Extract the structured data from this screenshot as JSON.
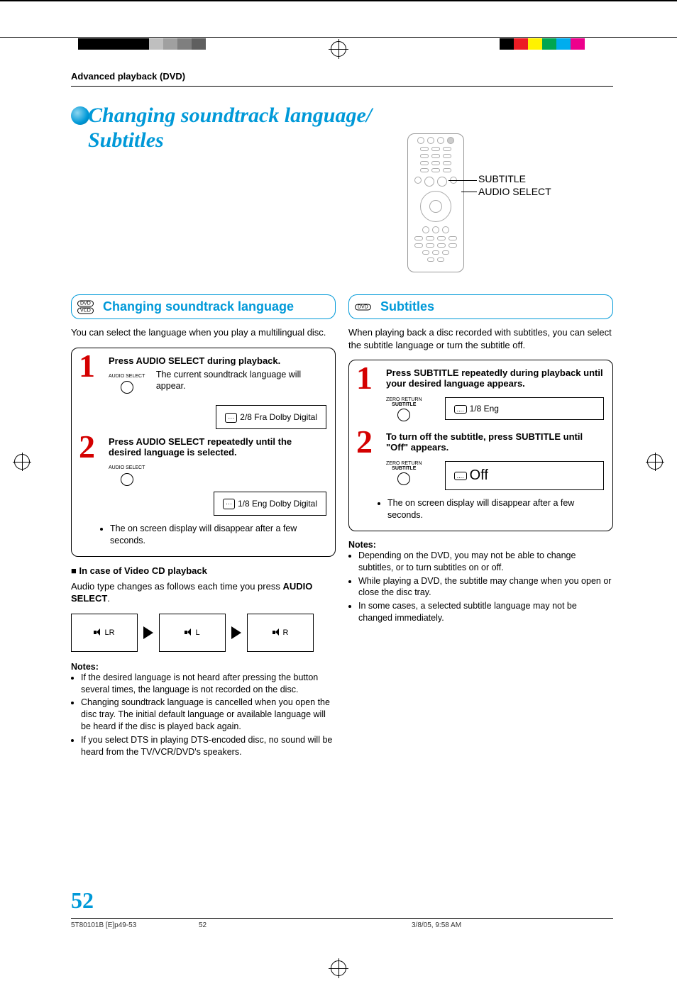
{
  "color_bars_left": [
    "#000000",
    "#000000",
    "#000000",
    "#000000",
    "#000000",
    "#bfbfbf",
    "#a0a0a0",
    "#7f7f7f",
    "#5f5f5f",
    "#ffffff"
  ],
  "color_bars_right": [
    "#000000",
    "#ec1c24",
    "#fff200",
    "#00a651",
    "#00adee",
    "#ed008c",
    "#ffffff"
  ],
  "breadcrumb": "Advanced playback (DVD)",
  "title_line1": "Changing soundtrack language/",
  "title_line2": "Subtitles",
  "remote_labels": {
    "subtitle": "SUBTITLE",
    "audio_select": "AUDIO SELECT"
  },
  "left": {
    "header_badges": [
      "DVD",
      "VCD"
    ],
    "header": "Changing soundtrack language",
    "intro": "You can select the language when you play a multilingual disc.",
    "step1": {
      "num": "1",
      "title": "Press AUDIO SELECT during playback.",
      "btn_label": "AUDIO SELECT",
      "body": "The current soundtrack language will appear.",
      "osd": "2/8 Fra Dolby Digital"
    },
    "step2": {
      "num": "2",
      "title": "Press AUDIO SELECT repeatedly until the desired language is selected.",
      "btn_label": "AUDIO SELECT",
      "osd": "1/8 Eng Dolby Digital"
    },
    "step_note": "The on screen display will disappear after a few seconds.",
    "vcd_heading": "In case of Video CD playback",
    "vcd_body_a": "Audio type changes as follows each time you press ",
    "vcd_body_b": "AUDIO SELECT",
    "vcd_body_c": ".",
    "cycle": [
      "LR",
      "L",
      "R"
    ],
    "notes_h": "Notes:",
    "notes": [
      "If the desired language is not heard after pressing the button several times, the language is not recorded on the disc.",
      "Changing soundtrack language is cancelled when you open the disc tray. The initial default language or available language will be heard if the disc is played back again.",
      "If you select DTS in playing DTS-encoded disc, no sound will be heard from the TV/VCR/DVD's speakers."
    ]
  },
  "right": {
    "header_badges": [
      "DVD"
    ],
    "header": "Subtitles",
    "intro": "When playing back a disc recorded with subtitles, you can select the subtitle language or turn the subtitle off.",
    "step1": {
      "num": "1",
      "title": "Press SUBTITLE repeatedly during playback until your desired language appears.",
      "btn_label_a": "ZERO RETURN",
      "btn_label_b": "SUBTITLE",
      "osd": "1/8 Eng"
    },
    "step2": {
      "num": "2",
      "title": "To turn off the subtitle, press SUBTITLE until \"Off\" appears.",
      "btn_label_a": "ZERO RETURN",
      "btn_label_b": "SUBTITLE",
      "osd": "Off"
    },
    "step_note": "The on screen display will disappear after a few seconds.",
    "notes_h": "Notes:",
    "notes": [
      "Depending on the DVD, you may not be able to change subtitles, or to turn subtitles on or off.",
      "While playing a DVD, the subtitle may change when you open or close the disc tray.",
      "In some cases, a selected subtitle language may not be changed immediately."
    ]
  },
  "page_number": "52",
  "footer": {
    "file": "5T80101B [E]p49-53",
    "page": "52",
    "date": "3/8/05, 9:58 AM"
  },
  "theme": {
    "accent": "#0099d8",
    "red": "#d40000"
  }
}
